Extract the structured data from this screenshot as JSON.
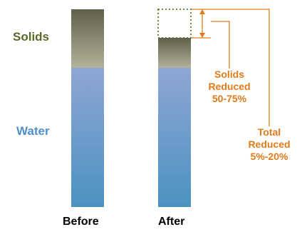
{
  "labels": {
    "solids": "Solids",
    "water": "Water",
    "before": "Before",
    "after": "After"
  },
  "annotations": {
    "solids_reduced": {
      "line1": "Solids",
      "line2": "Reduced",
      "line3": "50-75%"
    },
    "total_reduced": {
      "line1": "Total",
      "line2": "Reduced",
      "line3": "5%-20%"
    }
  },
  "colors": {
    "solids_label": "#5b6a2b",
    "water_label": "#4f8ec9",
    "annotation": "#e07b1a",
    "solids_top": "#5f604b",
    "solids_bottom": "#b3b19a",
    "water_top": "#8fa6d3",
    "water_bottom": "#4b92c1",
    "removed_outline": "#6b8b3a"
  }
}
